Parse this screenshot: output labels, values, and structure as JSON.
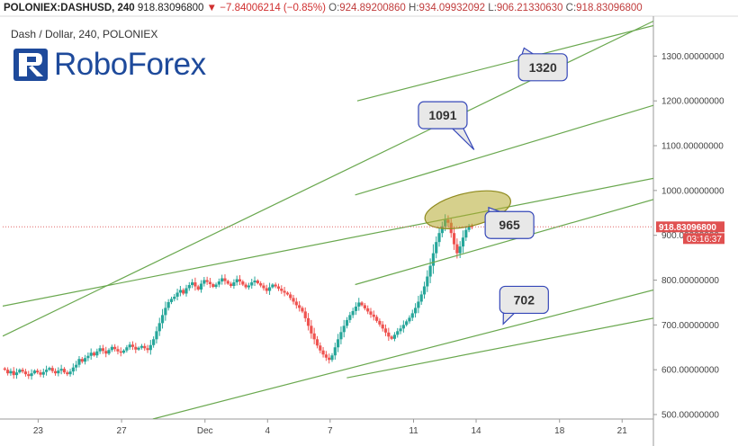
{
  "header": {
    "symbol": "POLONIEX:DASHUSD, 240",
    "last": "918.83096800",
    "arrow": "▼",
    "change": "−7.84006214 (−0.85%)",
    "o_label": "O:",
    "o_value": "924.89200860",
    "h_label": "H:",
    "h_value": "934.09932092",
    "l_label": "L:",
    "l_value": "906.21330630",
    "c_label": "C:",
    "c_value": "918.83096800"
  },
  "subtitle": "Dash / Dollar, 240, POLONIEX",
  "logo": {
    "text": "RoboForex",
    "mark_letter": "R"
  },
  "colors": {
    "up": "#26a69a",
    "down": "#ef5350",
    "trend": "#6aa84f",
    "price_line": "#e06666",
    "callout_fill": "#e8e8e8",
    "callout_stroke": "#3547b8",
    "ellipse_fill": "#b5a92e",
    "logo": "#1e4a9b"
  },
  "chart_data": {
    "type": "candlestick",
    "y_axis": {
      "range": [
        490,
        1385
      ],
      "ticks": [
        "500.00000000",
        "600.00000000",
        "700.00000000",
        "800.00000000",
        "900.00000000",
        "1000.00000000",
        "1100.00000000",
        "1200.00000000",
        "1300.00000000"
      ]
    },
    "x_axis": {
      "range": [
        21.3,
        52.5
      ],
      "ticks": [
        {
          "label": "23",
          "x": 23
        },
        {
          "label": "27",
          "x": 27
        },
        {
          "label": "Dec",
          "x": 31
        },
        {
          "label": "4",
          "x": 34
        },
        {
          "label": "7",
          "x": 37
        },
        {
          "label": "11",
          "x": 41
        },
        {
          "label": "14",
          "x": 44
        },
        {
          "label": "18",
          "x": 48
        },
        {
          "label": "21",
          "x": 51
        }
      ]
    },
    "last_price": {
      "value": 918.83,
      "label": "918.83096800",
      "countdown": "03:16:37"
    },
    "candles_close": [
      600,
      592,
      597,
      588,
      594,
      600,
      596,
      590,
      586,
      592,
      598,
      594,
      589,
      595,
      600,
      604,
      597,
      592,
      598,
      602,
      594,
      590,
      596,
      605,
      611,
      624,
      618,
      626,
      631,
      638,
      632,
      641,
      648,
      642,
      636,
      644,
      651,
      646,
      641,
      638,
      643,
      650,
      656,
      651,
      645,
      649,
      653,
      648,
      644,
      655,
      668,
      686,
      704,
      722,
      738,
      751,
      758,
      763,
      772,
      778,
      770,
      782,
      789,
      795,
      786,
      779,
      792,
      800,
      796,
      791,
      785,
      790,
      797,
      804,
      798,
      792,
      787,
      795,
      802,
      797,
      790,
      784,
      788,
      795,
      799,
      793,
      788,
      782,
      776,
      784,
      790,
      786,
      781,
      776,
      772,
      768,
      760,
      752,
      744,
      738,
      730,
      715,
      698,
      681,
      668,
      654,
      643,
      634,
      627,
      622,
      632,
      650,
      668,
      684,
      698,
      711,
      722,
      731,
      741,
      750,
      744,
      737,
      730,
      723,
      718,
      709,
      701,
      692,
      683,
      674,
      669,
      678,
      686,
      692,
      700,
      708,
      716,
      726,
      738,
      752,
      768,
      786,
      808,
      832,
      860,
      885,
      905,
      920,
      935,
      928,
      905,
      880,
      860,
      875,
      895,
      912,
      920,
      918.83
    ],
    "trend_lines": [
      {
        "p1": [
          21.3,
          675
        ],
        "p2": [
          52.5,
          1378
        ]
      },
      {
        "p1": [
          21.3,
          742
        ],
        "p2": [
          52.5,
          1027
        ]
      },
      {
        "p1": [
          28.5,
          490
        ],
        "p2": [
          52.5,
          778
        ]
      },
      {
        "p1": [
          37.8,
          582
        ],
        "p2": [
          52.5,
          715
        ]
      },
      {
        "p1": [
          38.2,
          790
        ],
        "p2": [
          52.5,
          980
        ]
      },
      {
        "p1": [
          38.3,
          1200
        ],
        "p2": [
          52.5,
          1368
        ]
      },
      {
        "p1": [
          38.2,
          990
        ],
        "p2": [
          52.5,
          1190
        ]
      }
    ],
    "ellipse": {
      "center": [
        43.6,
        957
      ],
      "rx": 2.1,
      "ry": 37,
      "angle_deg": -13
    },
    "annotations": [
      {
        "text": "1320",
        "box": [
          47.2,
          1275
        ],
        "tip": [
          46.3,
          1318
        ]
      },
      {
        "text": "1091",
        "box": [
          42.4,
          1168
        ],
        "tip": [
          43.9,
          1091
        ]
      },
      {
        "text": "965",
        "box": [
          45.6,
          923
        ],
        "tip": [
          44.6,
          962
        ]
      },
      {
        "text": "702",
        "box": [
          46.3,
          756
        ],
        "tip": [
          45.3,
          702
        ]
      }
    ]
  }
}
